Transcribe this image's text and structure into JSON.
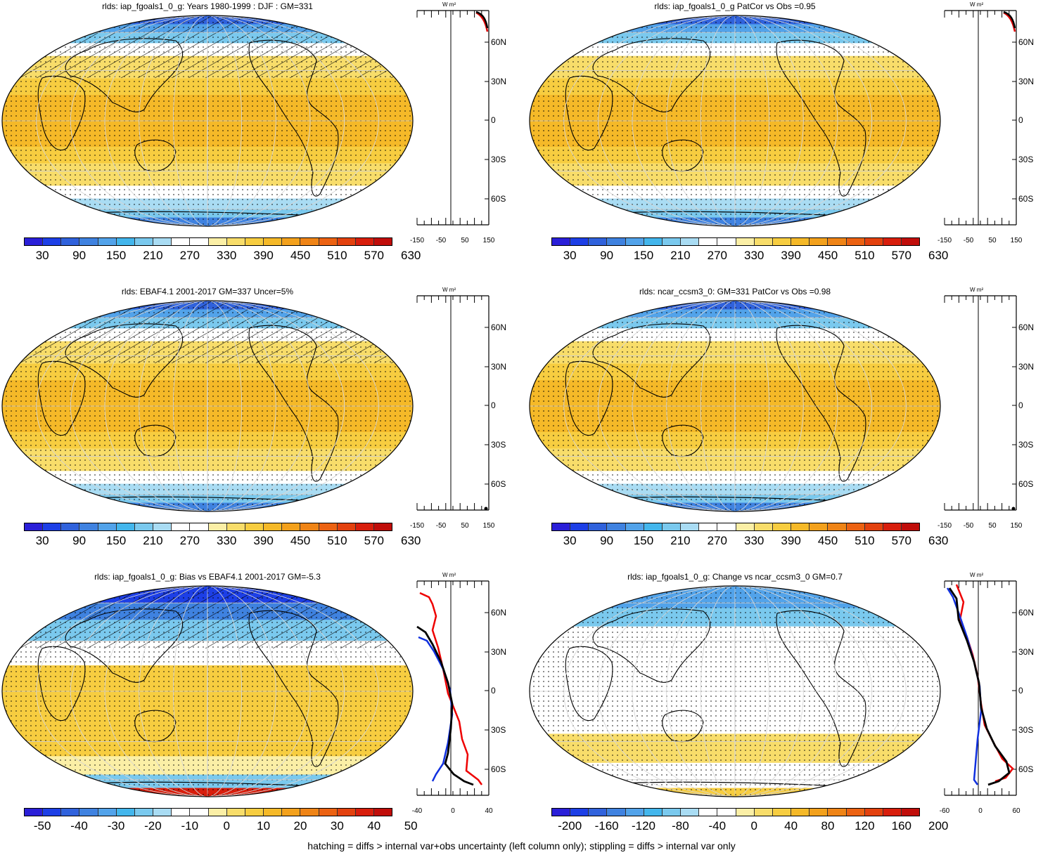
{
  "panels": [
    {
      "title": "rlds: iap_fgoals1_0_g: Years 1980-1999 : DJF : GM=331",
      "kind": "clim",
      "hatch": true,
      "cbar_labels": [
        "30",
        "90",
        "150",
        "210",
        "270",
        "330",
        "390",
        "450",
        "510",
        "570",
        "630"
      ],
      "prof_unit": "W m²",
      "prof_x_labels": [
        "-150",
        "-50",
        "50",
        "150"
      ],
      "lat_labels": [
        "60N",
        "30N",
        "0",
        "30S",
        "60S"
      ]
    },
    {
      "title": "rlds: iap_fgoals1_0_g PatCor vs Obs =0.95",
      "kind": "clim",
      "hatch": false,
      "cbar_labels": [
        "30",
        "90",
        "150",
        "210",
        "270",
        "330",
        "390",
        "450",
        "510",
        "570",
        "630"
      ],
      "prof_unit": "W m²",
      "prof_x_labels": [
        "-150",
        "-50",
        "50",
        "150"
      ],
      "lat_labels": [
        "60N",
        "30N",
        "0",
        "30S",
        "60S"
      ]
    },
    {
      "title": "rlds: EBAF4.1 2001-2017 GM=337 Uncer=5%",
      "kind": "clim",
      "hatch": true,
      "cbar_labels": [
        "30",
        "90",
        "150",
        "210",
        "270",
        "330",
        "390",
        "450",
        "510",
        "570",
        "630"
      ],
      "prof_unit": "W m²",
      "prof_x_labels": [
        "-150",
        "-50",
        "50",
        "150"
      ],
      "lat_labels": [
        "60N",
        "30N",
        "0",
        "30S",
        "60S"
      ]
    },
    {
      "title": "rlds: ncar_ccsm3_0: GM=331 PatCor vs Obs =0.98",
      "kind": "clim",
      "hatch": false,
      "cbar_labels": [
        "30",
        "90",
        "150",
        "210",
        "270",
        "330",
        "390",
        "450",
        "510",
        "570",
        "630"
      ],
      "prof_unit": "W m²",
      "prof_x_labels": [
        "-150",
        "-50",
        "50",
        "150"
      ],
      "lat_labels": [
        "60N",
        "30N",
        "0",
        "30S",
        "60S"
      ]
    },
    {
      "title": "rlds: iap_fgoals1_0_g: Bias vs EBAF4.1 2001-2017 GM=-5.3",
      "kind": "bias",
      "hatch": true,
      "cbar_labels": [
        "-50",
        "-40",
        "-30",
        "-20",
        "-10",
        "0",
        "10",
        "20",
        "30",
        "40",
        "50"
      ],
      "prof_unit": "W m²",
      "prof_x_labels": [
        "-40",
        "0",
        "40"
      ],
      "lat_labels": [
        "60N",
        "30N",
        "0",
        "30S",
        "60S"
      ]
    },
    {
      "title": "rlds: iap_fgoals1_0_g: Change vs ncar_ccsm3_0 GM=0.7",
      "kind": "change",
      "hatch": false,
      "cbar_labels": [
        "-200",
        "-160",
        "-120",
        "-80",
        "-40",
        "0",
        "40",
        "80",
        "120",
        "160",
        "200"
      ],
      "prof_unit": "W m²",
      "prof_x_labels": [
        "-60",
        "0",
        "60"
      ],
      "lat_labels": [
        "60N",
        "30N",
        "0",
        "30S",
        "60S"
      ]
    }
  ],
  "colormap": [
    "#2a1fd8",
    "#1d3fe6",
    "#3062dc",
    "#3f82e0",
    "#52a3ea",
    "#43b6ec",
    "#7ac9ee",
    "#a9dcf3",
    "#ffffff",
    "#ffffff",
    "#fbefa6",
    "#f8dd6a",
    "#f7cd40",
    "#f5b928",
    "#f3a11c",
    "#ef8416",
    "#ec6212",
    "#e3410e",
    "#d81e0c",
    "#c00d0a"
  ],
  "footnote": "hatching = diffs > internal var+obs uncertainty (left column only); stippling = diffs > internal var only"
}
